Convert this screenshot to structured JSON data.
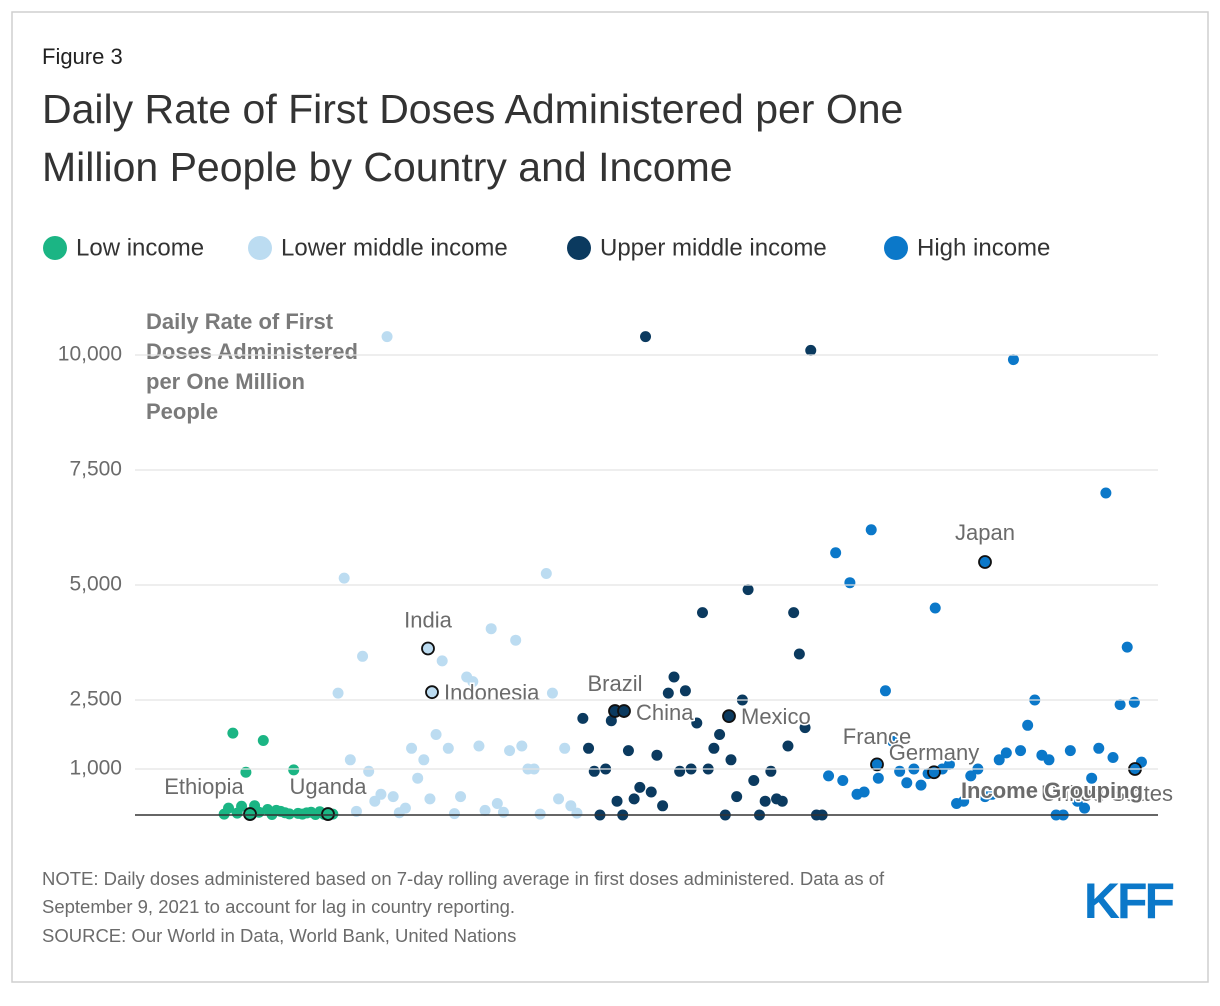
{
  "chart_data": {
    "type": "scatter",
    "figure_label": "Figure 3",
    "title": "Daily Rate of First Doses Administered per One Million People by Country and Income",
    "y_label": "Daily Rate of First Doses Administered per One Million People",
    "x_label": "Income Grouping",
    "ylim": [
      0,
      10500
    ],
    "yticks": [
      {
        "value": 1000,
        "label": "1,000"
      },
      {
        "value": 2500,
        "label": "2,500"
      },
      {
        "value": 5000,
        "label": "5,000"
      },
      {
        "value": 7500,
        "label": "7,500"
      },
      {
        "value": 10000,
        "label": "10,000"
      }
    ],
    "grid": true,
    "legend": "top",
    "series": [
      {
        "name": "Low income",
        "color": "#1bb584",
        "values": [
          20,
          150,
          1780,
          40,
          190,
          930,
          30,
          200,
          60,
          1620,
          120,
          10,
          100,
          80,
          50,
          25,
          980,
          35,
          20,
          45,
          60,
          10,
          70,
          15,
          30,
          20
        ],
        "highlighted": [
          {
            "label": "Ethiopia",
            "value": 20
          },
          {
            "label": "Uganda",
            "value": 20
          }
        ]
      },
      {
        "name": "Lower middle income",
        "color": "#bcdcf1",
        "values": [
          2650,
          5150,
          1200,
          80,
          3450,
          950,
          300,
          450,
          10400,
          400,
          50,
          150,
          1450,
          800,
          1200,
          350,
          1750,
          3350,
          1450,
          30,
          400,
          3000,
          2900,
          1500,
          100,
          4050,
          250,
          60,
          1400,
          3800,
          1500,
          1000,
          1000,
          20,
          5250,
          2650,
          350,
          1450,
          200,
          40
        ],
        "highlighted": [
          {
            "label": "India",
            "value": 3620
          },
          {
            "label": "Indonesia",
            "value": 2670
          }
        ]
      },
      {
        "name": "Upper middle income",
        "color": "#0b3a5f",
        "values": [
          2100,
          1450,
          950,
          0,
          1000,
          2050,
          300,
          0,
          1400,
          350,
          600,
          10400,
          500,
          1300,
          200,
          2650,
          3000,
          950,
          2700,
          1000,
          2000,
          4400,
          1000,
          1450,
          1750,
          0,
          1200,
          400,
          2500,
          4900,
          750,
          0,
          300,
          950,
          350,
          300,
          1500,
          4400,
          3500,
          1900,
          10100,
          0,
          0
        ],
        "highlighted": [
          {
            "label": "Brazil",
            "value": 2260
          },
          {
            "label": "China",
            "value": 2260
          },
          {
            "label": "Mexico",
            "value": 2150
          }
        ]
      },
      {
        "name": "High income",
        "color": "#0b78c9",
        "values": [
          850,
          5700,
          750,
          5050,
          450,
          500,
          6200,
          800,
          2700,
          1600,
          950,
          700,
          1000,
          650,
          900,
          4500,
          1000,
          1100,
          250,
          300,
          850,
          1000,
          400,
          450,
          1200,
          1350,
          9900,
          1400,
          1950,
          2500,
          1300,
          1200,
          0,
          0,
          1400,
          300,
          150,
          800,
          1450,
          7000,
          1250,
          2400,
          3650,
          2450,
          1150
        ],
        "highlighted": [
          {
            "label": "France",
            "value": 1100
          },
          {
            "label": "Germany",
            "value": 930
          },
          {
            "label": "Japan",
            "value": 5500
          },
          {
            "label": "United States",
            "value": 1000
          }
        ]
      }
    ],
    "note": "NOTE: Daily doses administered based on 7-day rolling average in first doses administered. Data as of September 9, 2021 to account for lag in country reporting.",
    "source": "SOURCE: Our World in Data, World Bank, United Nations",
    "logo": "KFF"
  }
}
